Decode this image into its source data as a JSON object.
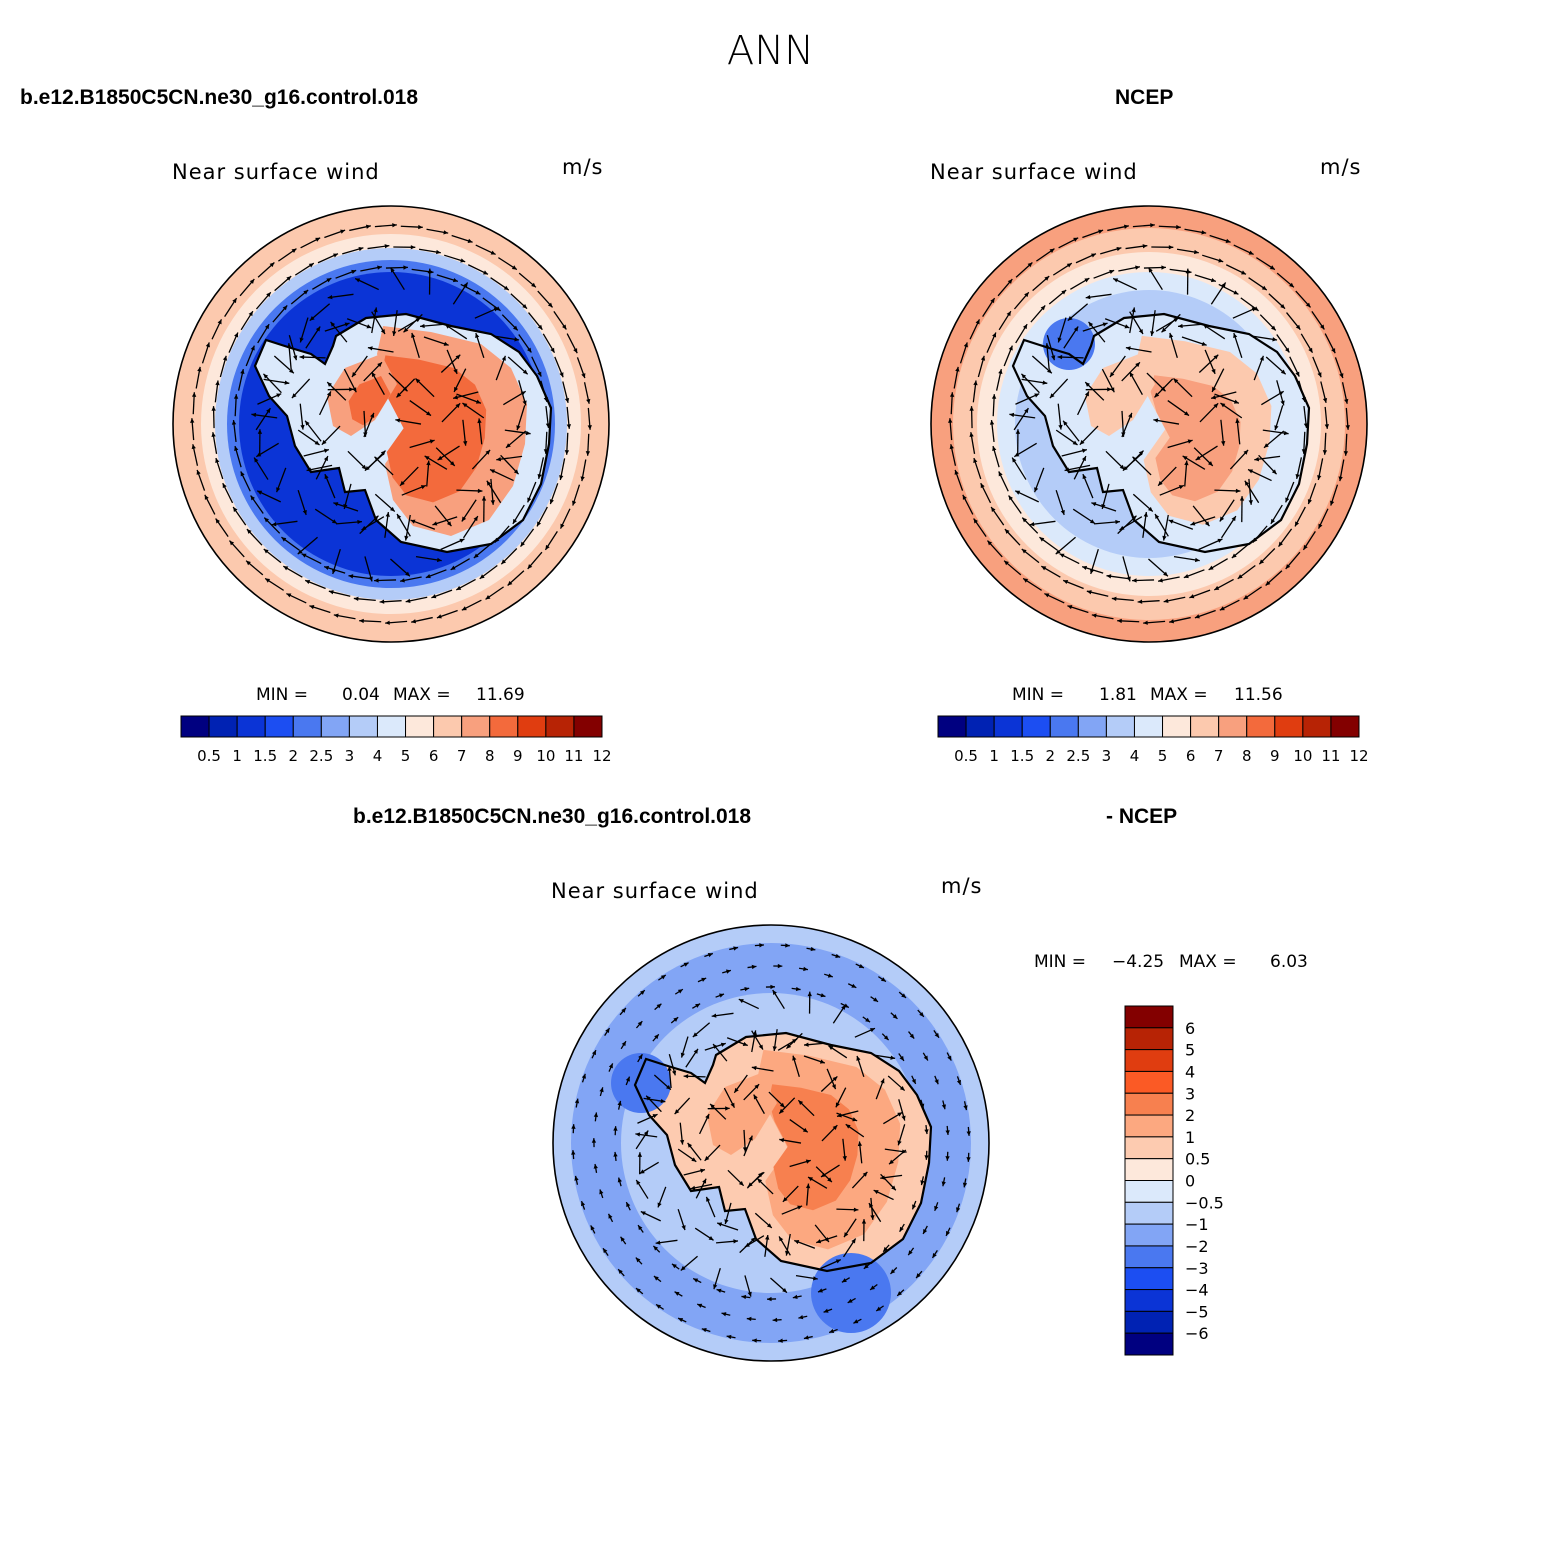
{
  "title": "ANN",
  "panels": [
    {
      "left_title": "b.e12.B1850C5CN.ne30_g16.control.018",
      "right_title": "NCEP"
    },
    {
      "left_title": "b.e12.B1850C5CN.ne30_g16.control.018",
      "right_title": "- NCEP"
    }
  ],
  "chart_data": [
    {
      "type": "heatmap",
      "projection": "south polar stereographic",
      "subtitle": "Near surface wind",
      "units": "m/s",
      "min_label": "MIN =",
      "min": "0.04",
      "max_label": "MAX =",
      "max": "11.69",
      "colorbar_orientation": "horizontal",
      "levels": [
        "0.5",
        "1",
        "1.5",
        "2",
        "2.5",
        "3",
        "4",
        "5",
        "6",
        "7",
        "8",
        "9",
        "10",
        "11",
        "12"
      ],
      "colors": [
        "#000080",
        "#0022b3",
        "#0b34d6",
        "#1c4ef2",
        "#4a78f0",
        "#82a5f5",
        "#b4ccf8",
        "#dbe9fb",
        "#fde8db",
        "#fcc9ae",
        "#f8a07e",
        "#f36a3c",
        "#e03d10",
        "#b72305",
        "#830000"
      ]
    },
    {
      "type": "heatmap",
      "projection": "south polar stereographic",
      "subtitle": "Near surface wind",
      "units": "m/s",
      "min_label": "MIN =",
      "min": "1.81",
      "max_label": "MAX =",
      "max": "11.56",
      "colorbar_orientation": "horizontal",
      "levels": [
        "0.5",
        "1",
        "1.5",
        "2",
        "2.5",
        "3",
        "4",
        "5",
        "6",
        "7",
        "8",
        "9",
        "10",
        "11",
        "12"
      ],
      "colors": [
        "#000080",
        "#0022b3",
        "#0b34d6",
        "#1c4ef2",
        "#4a78f0",
        "#82a5f5",
        "#b4ccf8",
        "#dbe9fb",
        "#fde8db",
        "#fcc9ae",
        "#f8a07e",
        "#f36a3c",
        "#e03d10",
        "#b72305",
        "#830000"
      ]
    },
    {
      "type": "heatmap",
      "projection": "south polar stereographic",
      "subtitle": "Near surface wind",
      "units": "m/s",
      "min_label": "MIN =",
      "min": "−4.25",
      "max_label": "MAX =",
      "max": "6.03",
      "colorbar_orientation": "vertical",
      "levels": [
        "6",
        "5",
        "4",
        "3",
        "2",
        "1",
        "0.5",
        "0",
        "−0.5",
        "−1",
        "−2",
        "−3",
        "−4",
        "−5",
        "−6"
      ],
      "colors": [
        "#830000",
        "#b72305",
        "#e03d10",
        "#fb5a25",
        "#f7804f",
        "#fca880",
        "#fdcbb0",
        "#fde8db",
        "#dbe9fb",
        "#b4ccf8",
        "#82a5f5",
        "#4a78f0",
        "#1c4ef2",
        "#0b34d6",
        "#0022b3",
        "#000080"
      ]
    }
  ]
}
